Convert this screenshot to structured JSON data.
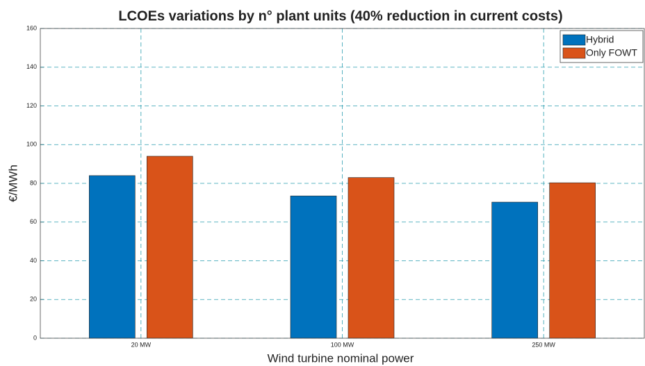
{
  "chart_data": {
    "type": "bar",
    "title": "LCOEs variations by n° plant units (40% reduction in current costs)",
    "xlabel": "Wind turbine nominal power",
    "ylabel": "€/MWh",
    "categories": [
      "20 MW",
      "100 MW",
      "250 MW"
    ],
    "series": [
      {
        "name": "Hybrid",
        "color": "#0072bd",
        "values": [
          84,
          73.5,
          70.3
        ]
      },
      {
        "name": "Only FOWT",
        "color": "#d95319",
        "values": [
          94,
          83,
          80.3
        ]
      }
    ],
    "ylim": [
      0,
      160
    ],
    "yticks": [
      0,
      20,
      40,
      60,
      80,
      100,
      120,
      140,
      160
    ],
    "grid": true,
    "legend": "upper right"
  }
}
